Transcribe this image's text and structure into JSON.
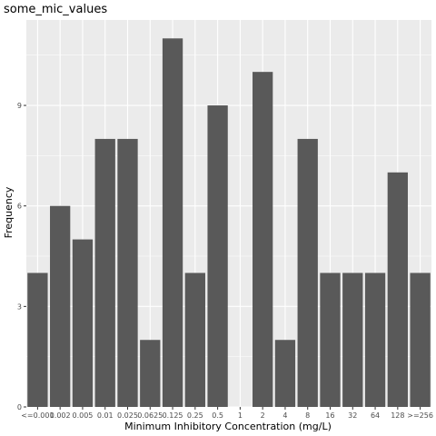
{
  "chart_data": {
    "type": "bar",
    "title": "some_mic_values",
    "xlabel": "Minimum Inhibitory Concentration (mg/L)",
    "ylabel": "Frequency",
    "categories": [
      "<=0.001",
      "0.002",
      "0.005",
      "0.01",
      "0.025",
      "0.0625",
      "0.125",
      "0.25",
      "0.5",
      "1",
      "2",
      "4",
      "8",
      "16",
      "32",
      "64",
      "128",
      ">=256"
    ],
    "values": [
      4,
      6,
      5,
      8,
      8,
      2,
      11,
      4,
      9,
      0,
      10,
      2,
      8,
      4,
      4,
      4,
      7,
      4
    ],
    "yticks": [
      0,
      3,
      6,
      9
    ],
    "ylim": [
      0,
      11.55
    ],
    "grid": true,
    "colors": {
      "bar": "#595959",
      "panel": "#ebebeb",
      "grid": "#ffffff"
    }
  }
}
